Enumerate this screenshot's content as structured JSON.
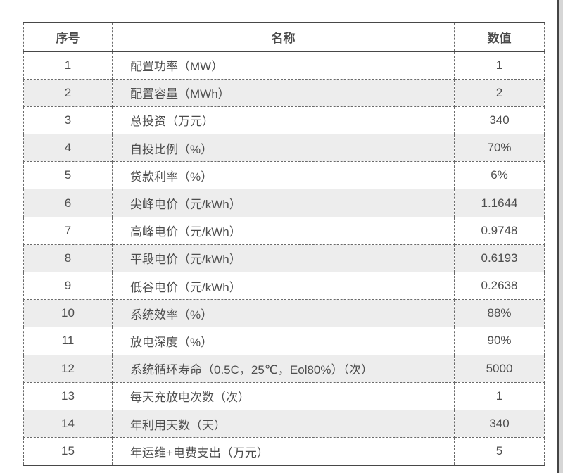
{
  "table": {
    "columns": [
      "序号",
      "名称",
      "数值"
    ],
    "rows": [
      {
        "no": "1",
        "name": "配置功率（MW）",
        "value": "1"
      },
      {
        "no": "2",
        "name": "配置容量（MWh）",
        "value": "2"
      },
      {
        "no": "3",
        "name": "总投资（万元）",
        "value": "340"
      },
      {
        "no": "4",
        "name": "自投比例（%）",
        "value": "70%"
      },
      {
        "no": "5",
        "name": "贷款利率（%）",
        "value": "6%"
      },
      {
        "no": "6",
        "name": "尖峰电价（元/kWh）",
        "value": "1.1644"
      },
      {
        "no": "7",
        "name": "高峰电价（元/kWh）",
        "value": "0.9748"
      },
      {
        "no": "8",
        "name": "平段电价（元/kWh）",
        "value": "0.6193"
      },
      {
        "no": "9",
        "name": "低谷电价（元/kWh）",
        "value": "0.2638"
      },
      {
        "no": "10",
        "name": "系统效率（%）",
        "value": "88%"
      },
      {
        "no": "11",
        "name": "放电深度（%）",
        "value": "90%"
      },
      {
        "no": "12",
        "name": "系统循环寿命（0.5C，25℃，Eol80%）（次）",
        "value": "5000"
      },
      {
        "no": "13",
        "name": "每天充放电次数（次）",
        "value": "1"
      },
      {
        "no": "14",
        "name": "年利用天数（天）",
        "value": "340"
      },
      {
        "no": "15",
        "name": "年运维+电费支出（万元）",
        "value": "5"
      }
    ]
  },
  "colors": {
    "solid_border": "#474747",
    "dashed_border": "#6a6a6a",
    "alt_row_bg": "#ededed",
    "text": "#4d4d4d",
    "edge_line": "#454545",
    "edge_strip": "#d6d6d6"
  }
}
